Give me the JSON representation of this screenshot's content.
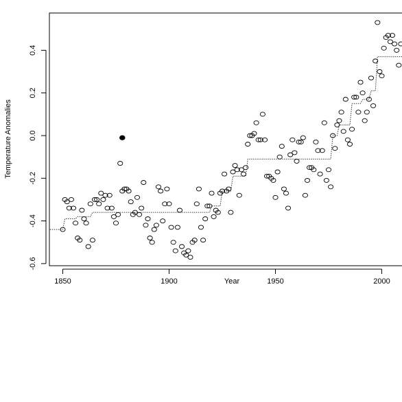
{
  "chart_data": {
    "type": "scatter",
    "title": "",
    "xlabel": "Year",
    "ylabel": "Temperature Anomalies",
    "xlim": [
      1843,
      2015
    ],
    "ylim": [
      -0.62,
      0.57
    ],
    "xticks": [
      1850,
      1900,
      1950,
      2000
    ],
    "yticks": [
      -0.6,
      -0.4,
      -0.2,
      0.0,
      0.2,
      0.4
    ],
    "xtick_labels": [
      "1850",
      "1900",
      "1950",
      "2000"
    ],
    "ytick_labels": [
      "-0.6",
      "-0.4",
      "-0.2",
      "0.0",
      "0.2",
      "0.4"
    ],
    "grid": false,
    "series": [
      {
        "marker": "open-circle",
        "x": [
          1850,
          1851,
          1852,
          1853,
          1854,
          1855,
          1856,
          1857,
          1858,
          1859,
          1860,
          1861,
          1862,
          1863,
          1864,
          1865,
          1866,
          1867,
          1868,
          1869,
          1870,
          1871,
          1872,
          1873,
          1874,
          1875,
          1876,
          1877,
          1878,
          1879,
          1880,
          1881,
          1882,
          1883,
          1884,
          1885,
          1886,
          1887,
          1888,
          1889,
          1890,
          1891,
          1892,
          1893,
          1894,
          1895,
          1896,
          1897,
          1898,
          1899,
          1900,
          1901,
          1902,
          1903,
          1904,
          1905,
          1906,
          1907,
          1908,
          1909,
          1910,
          1911,
          1912,
          1913,
          1914,
          1915,
          1916,
          1917,
          1918,
          1919,
          1920,
          1921,
          1922,
          1923,
          1924,
          1925,
          1926,
          1927,
          1928,
          1929,
          1930,
          1931,
          1932,
          1933,
          1934,
          1935,
          1936,
          1937,
          1938,
          1939,
          1940,
          1941,
          1942,
          1943,
          1944,
          1945,
          1946,
          1947,
          1948,
          1949,
          1950,
          1951,
          1952,
          1953,
          1954,
          1955,
          1956,
          1957,
          1958,
          1959,
          1960,
          1961,
          1962,
          1963,
          1964,
          1965,
          1966,
          1967,
          1968,
          1969,
          1970,
          1971,
          1972,
          1973,
          1974,
          1975,
          1976,
          1977,
          1978,
          1979,
          1980,
          1981,
          1982,
          1983,
          1984,
          1985,
          1986,
          1987,
          1988,
          1989,
          1990,
          1991,
          1992,
          1993,
          1994,
          1995,
          1996,
          1997,
          1998,
          1999,
          2000,
          2001,
          2002,
          2003,
          2004,
          2005,
          2006,
          2007,
          2008,
          2009
        ],
        "y": [
          -0.44,
          -0.3,
          -0.31,
          -0.34,
          -0.3,
          -0.34,
          -0.41,
          -0.48,
          -0.49,
          -0.35,
          -0.39,
          -0.41,
          -0.52,
          -0.32,
          -0.49,
          -0.3,
          -0.3,
          -0.32,
          -0.27,
          -0.3,
          -0.28,
          -0.34,
          -0.28,
          -0.34,
          -0.38,
          -0.41,
          -0.37,
          -0.13,
          -0.26,
          -0.25,
          -0.25,
          -0.26,
          -0.31,
          -0.37,
          -0.36,
          -0.29,
          -0.37,
          -0.34,
          -0.22,
          -0.42,
          -0.39,
          -0.48,
          -0.5,
          -0.44,
          -0.42,
          -0.24,
          -0.26,
          -0.4,
          -0.32,
          -0.25,
          -0.32,
          -0.43,
          -0.5,
          -0.54,
          -0.43,
          -0.35,
          -0.52,
          -0.55,
          -0.56,
          -0.54,
          -0.57,
          -0.5,
          -0.49,
          -0.32,
          -0.25,
          -0.43,
          -0.49,
          -0.39,
          -0.33,
          -0.33,
          -0.27,
          -0.38,
          -0.35,
          -0.36,
          -0.27,
          -0.26,
          -0.18,
          -0.26,
          -0.25,
          -0.36,
          -0.17,
          -0.14,
          -0.16,
          -0.28,
          -0.16,
          -0.18,
          -0.15,
          -0.04,
          0.0,
          0.0,
          0.01,
          0.06,
          -0.02,
          -0.02,
          0.1,
          -0.02,
          -0.19,
          -0.19,
          -0.2,
          -0.21,
          -0.29,
          -0.17,
          -0.1,
          -0.05,
          -0.25,
          -0.27,
          -0.34,
          -0.09,
          -0.02,
          -0.08,
          -0.12,
          -0.03,
          -0.03,
          -0.01,
          -0.28,
          -0.21,
          -0.15,
          -0.15,
          -0.16,
          -0.03,
          -0.07,
          -0.18,
          -0.07,
          0.06,
          -0.21,
          -0.16,
          -0.24,
          0.0,
          -0.06,
          0.05,
          0.07,
          0.11,
          0.02,
          0.17,
          -0.02,
          -0.04,
          0.03,
          0.18,
          0.18,
          0.11,
          0.25,
          0.2,
          0.07,
          0.11,
          0.17,
          0.27,
          0.14,
          0.35,
          0.53,
          0.3,
          0.28,
          0.41,
          0.46,
          0.47,
          0.44,
          0.47,
          0.43,
          0.4,
          0.33,
          0.43
        ]
      },
      {
        "marker": "filled-circle",
        "x": [
          1878
        ],
        "y": [
          -0.01
        ]
      },
      {
        "line": "dotted-step",
        "x": [
          1843,
          1850,
          1851,
          1856,
          1857,
          1863,
          1864,
          1911,
          1912,
          1919,
          1920,
          1924,
          1925,
          1929,
          1930,
          1936,
          1937,
          1976,
          1977,
          1979,
          1980,
          1985,
          1986,
          1990,
          1991,
          1994,
          1995,
          1997,
          1998,
          2015
        ],
        "y": [
          -0.44,
          -0.44,
          -0.39,
          -0.39,
          -0.38,
          -0.38,
          -0.36,
          -0.36,
          -0.36,
          -0.36,
          -0.33,
          -0.33,
          -0.26,
          -0.26,
          -0.19,
          -0.19,
          -0.11,
          -0.11,
          0.0,
          0.0,
          0.05,
          0.05,
          0.15,
          0.15,
          0.17,
          0.17,
          0.21,
          0.21,
          0.37,
          0.37
        ]
      }
    ]
  }
}
